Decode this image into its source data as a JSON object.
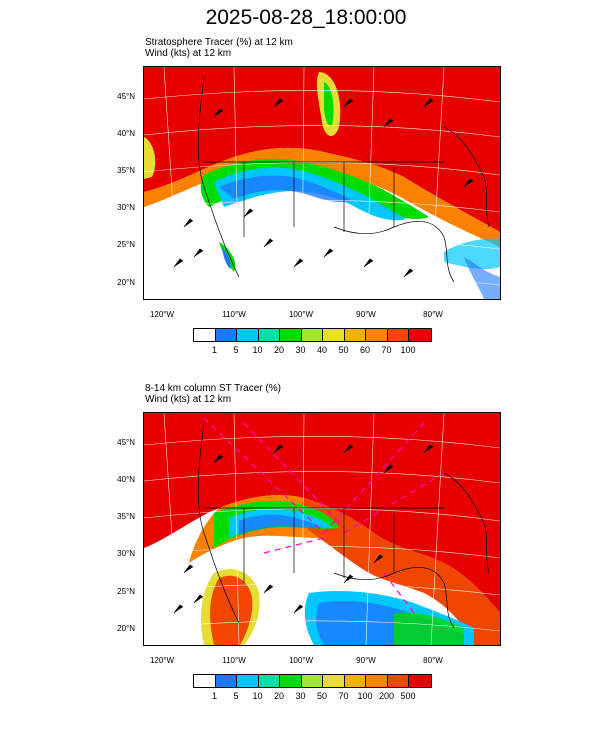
{
  "title": "2025-08-28_18:00:00",
  "panels": [
    {
      "subtitle1": "Stratosphere Tracer   (%)     at   12 km",
      "subtitle2": "Wind   (kts)     at   12 km",
      "colorbar": {
        "labels": [
          "1",
          "5",
          "10",
          "20",
          "30",
          "40",
          "50",
          "60",
          "70",
          "100"
        ],
        "colors": [
          "#ffffff",
          "#1e78ff",
          "#00c8ff",
          "#00e0a0",
          "#00dc00",
          "#a0e632",
          "#e6dc32",
          "#f0b400",
          "#fa8200",
          "#f04600",
          "#e60000"
        ]
      }
    },
    {
      "subtitle1": "8-14 km column ST Tracer   (%)",
      "subtitle2": "Wind   (kts)     at   12 km",
      "colorbar": {
        "labels": [
          "1",
          "5",
          "10",
          "20",
          "30",
          "50",
          "70",
          "100",
          "200",
          "500"
        ],
        "colors": [
          "#ffffff",
          "#1e78ff",
          "#00c8ff",
          "#00e0a0",
          "#00dc00",
          "#a0e632",
          "#e6dc32",
          "#f0b400",
          "#fa8200",
          "#f04600",
          "#e60000"
        ]
      }
    }
  ],
  "lat_labels": [
    "45°N",
    "40°N",
    "35°N",
    "30°N",
    "25°N",
    "20°N"
  ],
  "lon_labels": [
    "120°W",
    "110°W",
    "100°W",
    "90°W",
    "80°W"
  ]
}
